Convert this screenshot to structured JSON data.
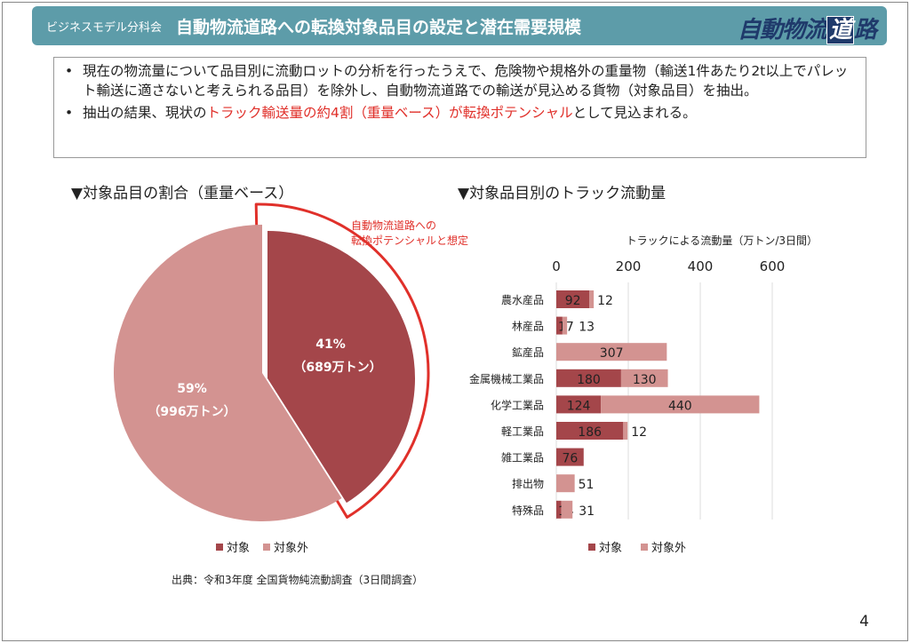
{
  "header": {
    "subtitle": "ビジネスモデル分科会",
    "title": "自動物流道路への転換対象品目の設定と潜在需要規模",
    "logo_text": "自動物流道路",
    "logo_a": "自動物流",
    "logo_b": "道",
    "logo_c": "路"
  },
  "bullets": [
    {
      "text": "現在の物流量について品目別に流動ロットの分析を行ったうえで、危険物や規格外の重量物（輸送1件あたり2t以上でパレット輸送に適さないと考えられる品目）を除外し、自動物流道路での輸送が見込める貨物（対象品目）を抽出。"
    },
    {
      "pre": "抽出の結果、現状の",
      "highlight": "トラック輸送量の約4割（重量ベース）が転換ポテンシャル",
      "post": "として見込まれる。"
    }
  ],
  "colors": {
    "target": "#a4464a",
    "nontarget": "#d39391",
    "outline": "#e0302a",
    "banner": "#5d9ca9"
  },
  "chart_data": [
    {
      "type": "pie",
      "title": "▼対象品目の割合（重量ベース）",
      "slices": [
        {
          "name": "対象",
          "percent": 41,
          "value_label": "（689万トン）",
          "pct_label": "41%",
          "value": 689
        },
        {
          "name": "対象外",
          "percent": 59,
          "value_label": "（996万トン）",
          "pct_label": "59%",
          "value": 996
        }
      ],
      "annotation": [
        "自動物流道路への",
        "転換ポテンシャルと想定"
      ],
      "legend": [
        "対象",
        "対象外"
      ],
      "legend_position": "bottom",
      "source": "出典：令和3年度 全国貨物純流動調査（3日間調査）"
    },
    {
      "type": "bar",
      "stacked": true,
      "orientation": "horizontal",
      "title": "▼対象品目別のトラック流動量",
      "xlabel": "トラックによる流動量（万トン/3日間）",
      "xlim": [
        0,
        650
      ],
      "xticks": [
        "0",
        "200",
        "400",
        "600"
      ],
      "xtick_values": [
        0,
        200,
        400,
        600
      ],
      "categories": [
        "農水産品",
        "林産品",
        "鉱産品",
        "金属機械工業品",
        "化学工業品",
        "軽工業品",
        "雑工業品",
        "排出物",
        "特殊品"
      ],
      "series": [
        {
          "name": "対象",
          "values": [
            92,
            17,
            0,
            180,
            124,
            186,
            76,
            0,
            14
          ]
        },
        {
          "name": "対象外",
          "values": [
            12,
            13,
            307,
            130,
            440,
            12,
            0,
            51,
            31
          ]
        }
      ],
      "legend": [
        "対象",
        "対象外"
      ],
      "legend_position": "bottom"
    }
  ],
  "page_number": "4"
}
